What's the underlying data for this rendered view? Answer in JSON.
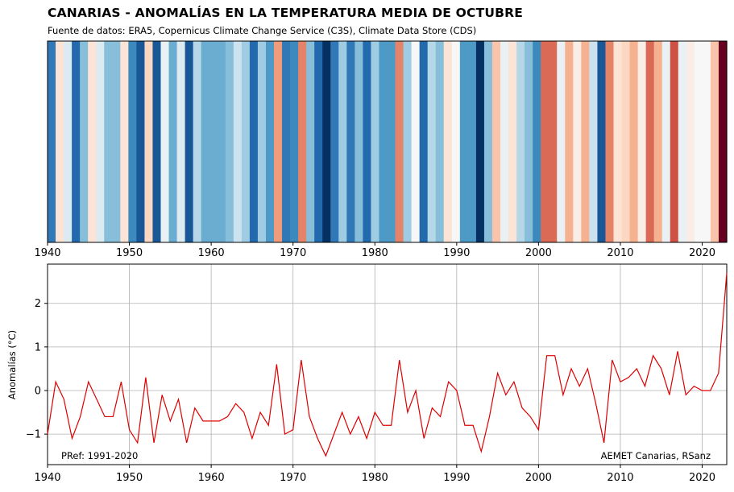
{
  "header": {
    "title": "CANARIAS - ANOMALÍAS EN LA TEMPERATURA MEDIA DE OCTUBRE",
    "subtitle": "Fuente de datos: ERA5, Copernicus Climate Change Service (C3S), Climate Data Store (CDS)"
  },
  "chart_data": [
    {
      "type": "heatmap",
      "title": "",
      "x_range": [
        1940,
        2023
      ],
      "x_ticks": [
        "1940",
        "1950",
        "1960",
        "1970",
        "1980",
        "1990",
        "2000",
        "2010",
        "2020"
      ],
      "colormap": "RdBu_r",
      "color_range": [
        -1.4,
        1.4
      ],
      "note": "one colored stripe per year, colored by the anomaly value (same data as line chart)"
    },
    {
      "type": "line",
      "title": "",
      "xlabel": "",
      "ylabel": "Anomalías (°C)",
      "xlim": [
        1940,
        2023
      ],
      "ylim": [
        -1.7,
        2.9
      ],
      "grid": true,
      "line_color": "#dd0000",
      "x_ticks": [
        "1940",
        "1950",
        "1960",
        "1970",
        "1980",
        "1990",
        "2000",
        "2010",
        "2020"
      ],
      "y_ticks": [
        "−1",
        "0",
        "1",
        "2"
      ],
      "annotations": {
        "left": "PRef: 1991-2020",
        "right": "AEMET Canarias, RSanz"
      },
      "x": [
        1940,
        1941,
        1942,
        1943,
        1944,
        1945,
        1946,
        1947,
        1948,
        1949,
        1950,
        1951,
        1952,
        1953,
        1954,
        1955,
        1956,
        1957,
        1958,
        1959,
        1960,
        1961,
        1962,
        1963,
        1964,
        1965,
        1966,
        1967,
        1968,
        1969,
        1970,
        1971,
        1972,
        1973,
        1974,
        1975,
        1976,
        1977,
        1978,
        1979,
        1980,
        1981,
        1982,
        1983,
        1984,
        1985,
        1986,
        1987,
        1988,
        1989,
        1990,
        1991,
        1992,
        1993,
        1994,
        1995,
        1996,
        1997,
        1998,
        1999,
        2000,
        2001,
        2002,
        2003,
        2004,
        2005,
        2006,
        2007,
        2008,
        2009,
        2010,
        2011,
        2012,
        2013,
        2014,
        2015,
        2016,
        2017,
        2018,
        2019,
        2020,
        2021,
        2022,
        2023
      ],
      "series": [
        {
          "values": [
            -1.0,
            0.2,
            -0.2,
            -1.1,
            -0.6,
            0.2,
            -0.2,
            -0.6,
            -0.6,
            0.2,
            -0.9,
            -1.2,
            0.3,
            -1.2,
            -0.1,
            -0.7,
            -0.2,
            -1.2,
            -0.4,
            -0.7,
            -0.7,
            -0.7,
            -0.6,
            -0.3,
            -0.5,
            -1.1,
            -0.5,
            -0.8,
            0.6,
            -1.0,
            -0.9,
            0.7,
            -0.6,
            -1.1,
            -1.5,
            -1.0,
            -0.5,
            -1.0,
            -0.6,
            -1.1,
            -0.5,
            -0.8,
            -0.8,
            0.7,
            -0.5,
            0.0,
            -1.1,
            -0.4,
            -0.6,
            0.2,
            0.0,
            -0.8,
            -0.8,
            -1.4,
            -0.6,
            0.4,
            -0.1,
            0.2,
            -0.4,
            -0.6,
            -0.9,
            0.8,
            0.8,
            -0.1,
            0.5,
            0.1,
            0.5,
            -0.3,
            -1.2,
            0.7,
            0.2,
            0.3,
            0.5,
            0.1,
            0.8,
            0.5,
            -0.1,
            0.9,
            -0.1,
            0.1,
            0.0,
            0.0,
            0.4,
            2.7
          ]
        }
      ]
    }
  ]
}
